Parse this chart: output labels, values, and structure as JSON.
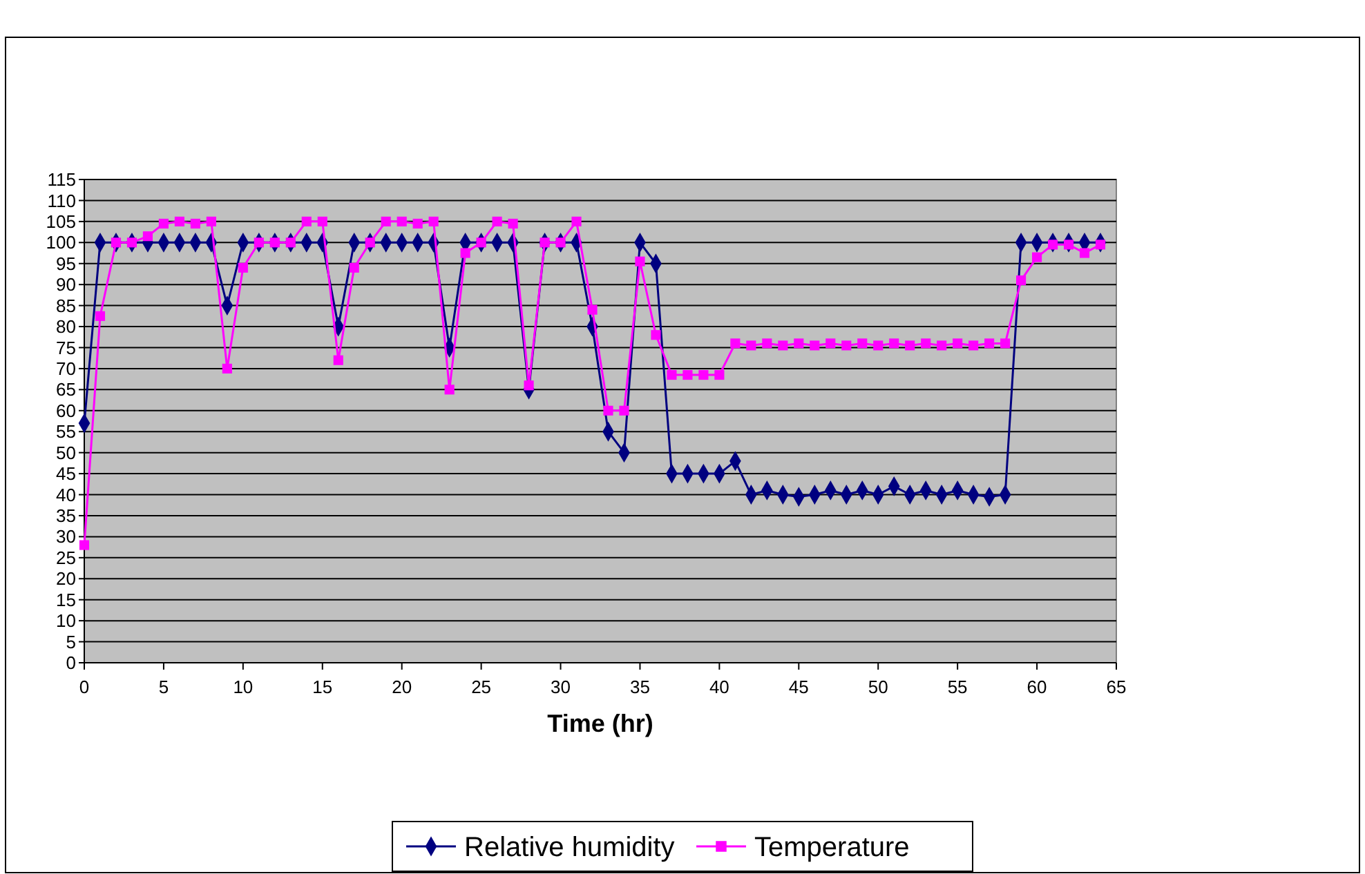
{
  "chart_data": {
    "type": "line",
    "xlabel": "Time (hr)",
    "x": [
      0,
      1,
      2,
      3,
      4,
      5,
      6,
      7,
      8,
      9,
      10,
      11,
      12,
      13,
      14,
      15,
      16,
      17,
      18,
      19,
      20,
      21,
      22,
      23,
      24,
      25,
      26,
      27,
      28,
      29,
      30,
      31,
      32,
      33,
      34,
      35,
      36,
      37,
      38,
      39,
      40,
      41,
      42,
      43,
      44,
      45,
      46,
      47,
      48,
      49,
      50,
      51,
      52,
      53,
      54,
      55,
      56,
      57,
      58,
      59,
      60,
      61,
      62,
      63,
      64
    ],
    "series": [
      {
        "name": "Relative humidity",
        "color": "#000080",
        "marker": "diamond",
        "values": [
          57,
          100,
          100,
          100,
          100,
          100,
          100,
          100,
          100,
          85,
          100,
          100,
          100,
          100,
          100,
          100,
          80,
          100,
          100,
          100,
          100,
          100,
          100,
          75,
          100,
          100,
          100,
          100,
          65,
          100,
          100,
          100,
          80,
          55,
          50,
          100,
          95,
          45,
          45,
          45,
          45,
          48,
          40,
          41,
          40,
          39.5,
          40,
          41,
          40,
          41,
          40,
          42,
          40,
          41,
          40,
          41,
          40,
          39.5,
          40,
          100,
          100,
          100,
          100,
          100,
          100
        ]
      },
      {
        "name": "Temperature",
        "color": "#ff00ff",
        "marker": "square",
        "values": [
          28,
          82.5,
          100,
          100,
          101.5,
          104.5,
          105,
          104.5,
          105,
          70,
          94,
          100,
          100,
          100,
          105,
          105,
          72,
          94,
          100,
          105,
          105,
          104.5,
          105,
          65,
          97.5,
          100,
          105,
          104.5,
          66,
          100,
          100,
          105,
          84,
          60,
          60,
          95.5,
          78,
          68.5,
          68.5,
          68.5,
          68.5,
          76,
          75.5,
          76,
          75.5,
          76,
          75.5,
          76,
          75.5,
          76,
          75.5,
          76,
          75.5,
          76,
          75.5,
          76,
          75.5,
          76,
          76,
          91,
          96.5,
          99.5,
          99.5,
          97.5,
          99.5
        ]
      }
    ],
    "xlim": [
      0,
      65
    ],
    "xticks": [
      0,
      5,
      10,
      15,
      20,
      25,
      30,
      35,
      40,
      45,
      50,
      55,
      60,
      65
    ],
    "ylim": [
      0,
      115
    ],
    "yticks": [
      0,
      5,
      10,
      15,
      20,
      25,
      30,
      35,
      40,
      45,
      50,
      55,
      60,
      65,
      70,
      75,
      80,
      85,
      90,
      95,
      100,
      105,
      110,
      115
    ],
    "grid": "y",
    "legend": "bottom",
    "line_style": "solid"
  }
}
